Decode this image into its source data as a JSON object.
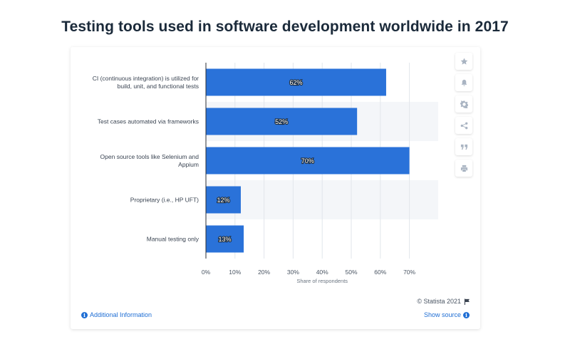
{
  "page": {
    "title": "Testing tools used in software development worldwide in 2017"
  },
  "toolbar": {
    "icons": [
      "star-icon",
      "bell-icon",
      "gear-icon",
      "share-icon",
      "quote-icon",
      "print-icon"
    ]
  },
  "footer": {
    "copyright": "© Statista 2021",
    "additional_info": "Additional Information",
    "show_source": "Show source"
  },
  "colors": {
    "bar": "#2a72d9",
    "band": "#f4f6f9",
    "grid": "#e2e6eb",
    "accent": "#1f6ed4"
  },
  "chart_data": {
    "type": "bar",
    "orientation": "horizontal",
    "categories": [
      [
        "CI (continuous integration) is utilized for",
        "build, unit, and functional tests"
      ],
      [
        "Test cases automated via frameworks"
      ],
      [
        "Open source tools like Selenium and",
        "Appium"
      ],
      [
        "Proprietary (i.e., HP UFT)"
      ],
      [
        "Manual testing only"
      ]
    ],
    "values": [
      62,
      52,
      70,
      12,
      13
    ],
    "value_labels": [
      "62%",
      "52%",
      "70%",
      "12%",
      "13%"
    ],
    "xlabel": "Share of respondents",
    "xlim": [
      0,
      80
    ],
    "xticks": [
      0,
      10,
      20,
      30,
      40,
      50,
      60,
      70
    ],
    "xtick_labels": [
      "0%",
      "10%",
      "20%",
      "30%",
      "40%",
      "50%",
      "60%",
      "70%"
    ],
    "grid": true
  }
}
